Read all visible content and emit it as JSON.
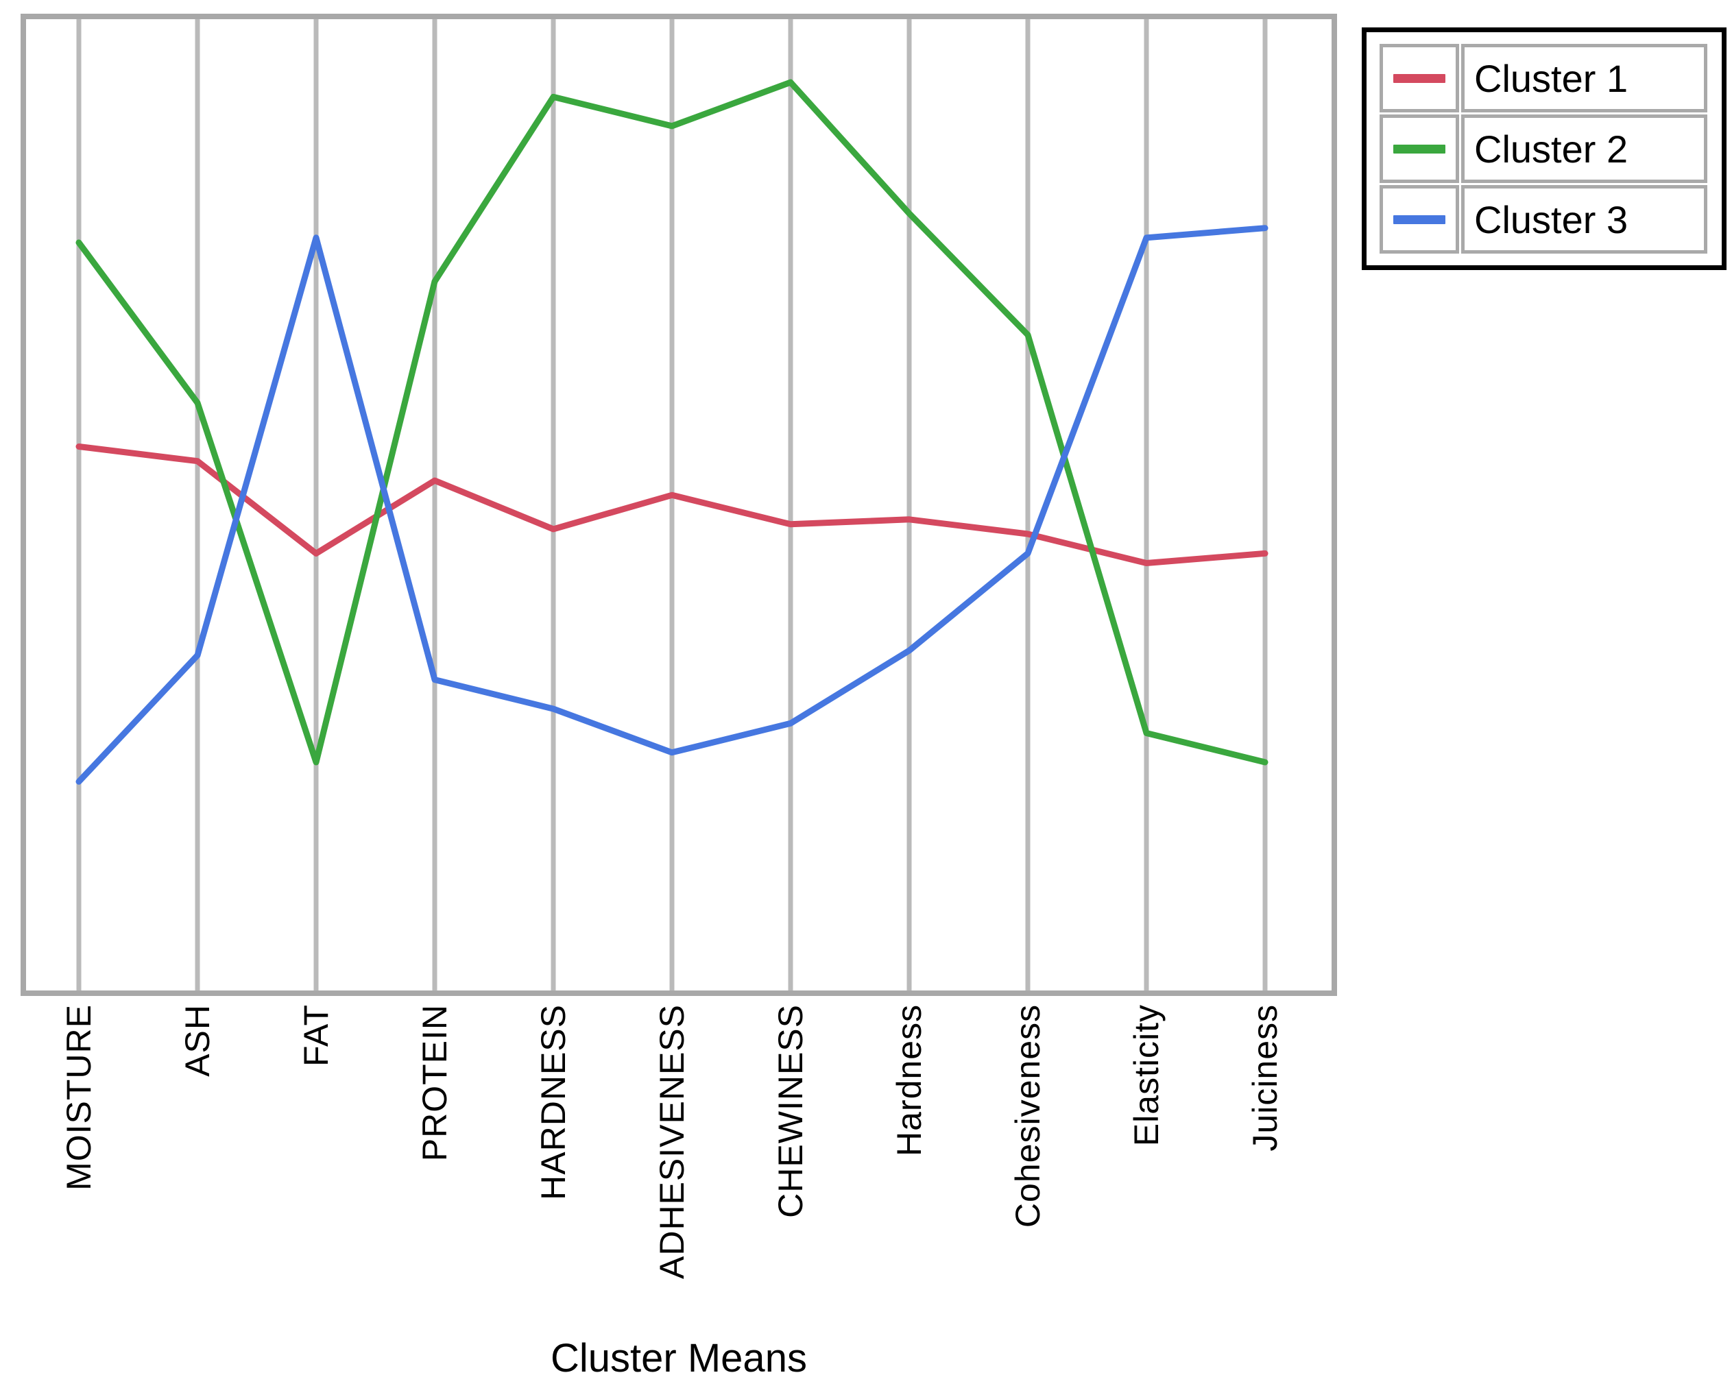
{
  "chart_data": {
    "type": "line",
    "variant": "parallel-coordinates",
    "title": "",
    "xlabel": "Cluster Means",
    "ylabel": "",
    "ylim": [
      0,
      100
    ],
    "y_axis_visible": false,
    "grid": "vertical-only",
    "legend_position": "top-right",
    "categories": [
      "MOISTURE",
      "ASH",
      "FAT",
      "PROTEIN",
      "HARDNESS",
      "ADHESIVENESS",
      "CHEWINESS",
      "Hardness",
      "Cohesiveness",
      "Elasticity",
      "Juiciness"
    ],
    "series": [
      {
        "name": "Cluster 1",
        "color": "#d4495f",
        "values": [
          56,
          54.5,
          45,
          52.5,
          47.5,
          51,
          48,
          48.5,
          47,
          44,
          45
        ]
      },
      {
        "name": "Cluster 2",
        "color": "#3aa73e",
        "values": [
          77,
          60.5,
          23.5,
          73,
          92,
          89,
          93.5,
          80,
          67.5,
          26.5,
          23.5
        ]
      },
      {
        "name": "Cluster 3",
        "color": "#4677e0",
        "values": [
          21.5,
          34.5,
          77.5,
          32,
          29,
          24.5,
          27.5,
          35,
          45,
          77.5,
          78.5
        ]
      }
    ]
  },
  "colors": {
    "gridline": "#bababa",
    "plot_border": "#a8a8a8",
    "legend_border": "#000000",
    "text": "#000000",
    "background": "#ffffff"
  }
}
